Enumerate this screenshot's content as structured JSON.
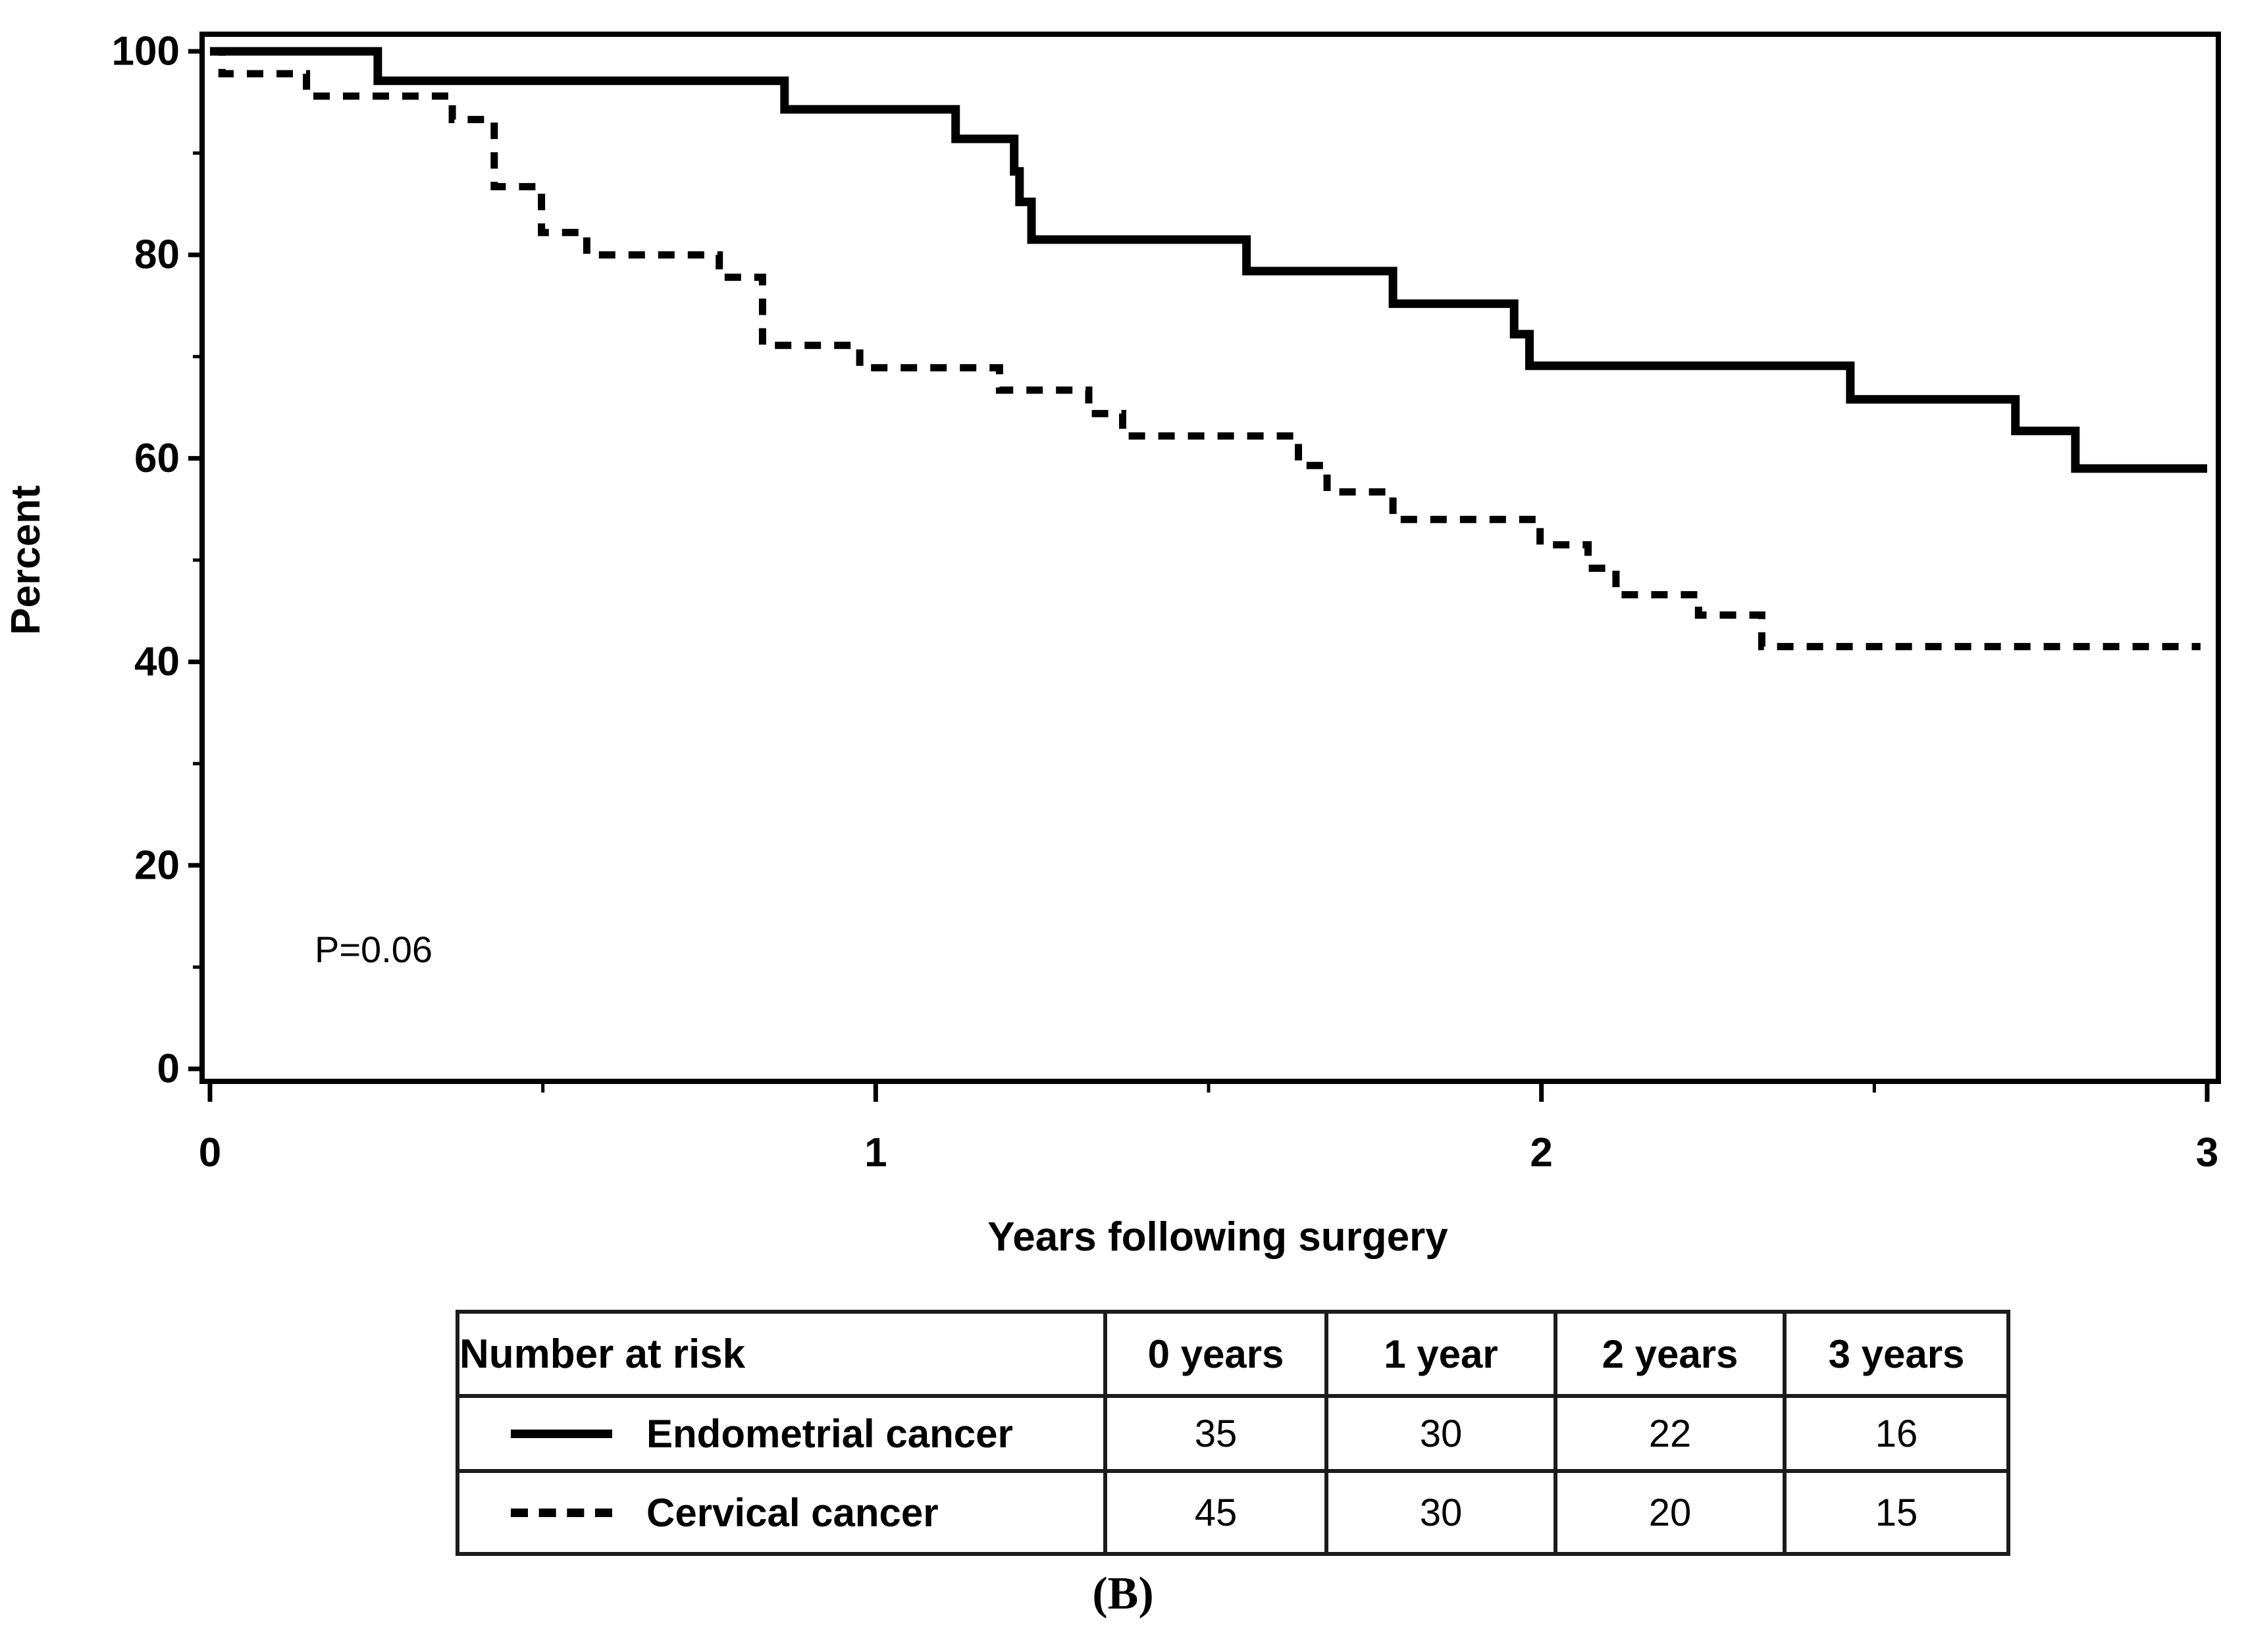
{
  "figure": {
    "caption": "(B)"
  },
  "chart_data": {
    "type": "line",
    "subtype": "kaplan-meier-step",
    "title": "",
    "xlabel": "Years following surgery",
    "ylabel": "Percent",
    "xlim": [
      0,
      3
    ],
    "ylim": [
      0,
      100
    ],
    "x_major_ticks": [
      0,
      1,
      2,
      3
    ],
    "x_minor_ticks": [
      0.5,
      1.5,
      2.5
    ],
    "y_major_ticks": [
      0,
      20,
      40,
      60,
      80,
      100
    ],
    "y_minor_ticks": [
      10,
      30,
      50,
      70,
      90
    ],
    "grid": false,
    "legend_position": "none",
    "annotation": "P=0.06",
    "series": [
      {
        "name": "Endometrial cancer",
        "line_style": "solid",
        "color": "#000000",
        "steps": [
          [
            0,
            100
          ],
          [
            0.252,
            97.1
          ],
          [
            0.863,
            94.3
          ],
          [
            1.12,
            91.4
          ],
          [
            1.208,
            88.2
          ],
          [
            1.216,
            85.2
          ],
          [
            1.234,
            81.5
          ],
          [
            1.557,
            78.4
          ],
          [
            1.777,
            75.2
          ],
          [
            1.959,
            72.2
          ],
          [
            1.982,
            69.1
          ],
          [
            2.464,
            65.8
          ],
          [
            2.712,
            62.7
          ],
          [
            2.802,
            59.0
          ]
        ],
        "end_year": 3.0
      },
      {
        "name": "Cervical cancer",
        "line_style": "dashed",
        "color": "#000000",
        "steps": [
          [
            0,
            100
          ],
          [
            0.018,
            97.8
          ],
          [
            0.145,
            95.6
          ],
          [
            0.364,
            93.3
          ],
          [
            0.427,
            86.7
          ],
          [
            0.498,
            82.2
          ],
          [
            0.566,
            80.0
          ],
          [
            0.765,
            77.8
          ],
          [
            0.83,
            71.1
          ],
          [
            0.976,
            68.9
          ],
          [
            1.186,
            66.7
          ],
          [
            1.32,
            64.4
          ],
          [
            1.371,
            62.2
          ],
          [
            1.635,
            59.3
          ],
          [
            1.678,
            56.7
          ],
          [
            1.777,
            54.0
          ],
          [
            1.998,
            51.5
          ],
          [
            2.07,
            49.2
          ],
          [
            2.112,
            46.6
          ],
          [
            2.236,
            44.6
          ],
          [
            2.331,
            41.5
          ]
        ],
        "end_year": 2.99
      }
    ]
  },
  "risk_table": {
    "title_cell": "Number at risk",
    "columns": [
      "0 years",
      "1 year",
      "2 years",
      "3 years"
    ],
    "rows": [
      {
        "label": "Endometrial cancer",
        "swatch": "solid",
        "values": [
          "35",
          "30",
          "22",
          "16"
        ]
      },
      {
        "label": "Cervical cancer",
        "swatch": "dashed",
        "values": [
          "45",
          "30",
          "20",
          "15"
        ]
      }
    ]
  }
}
